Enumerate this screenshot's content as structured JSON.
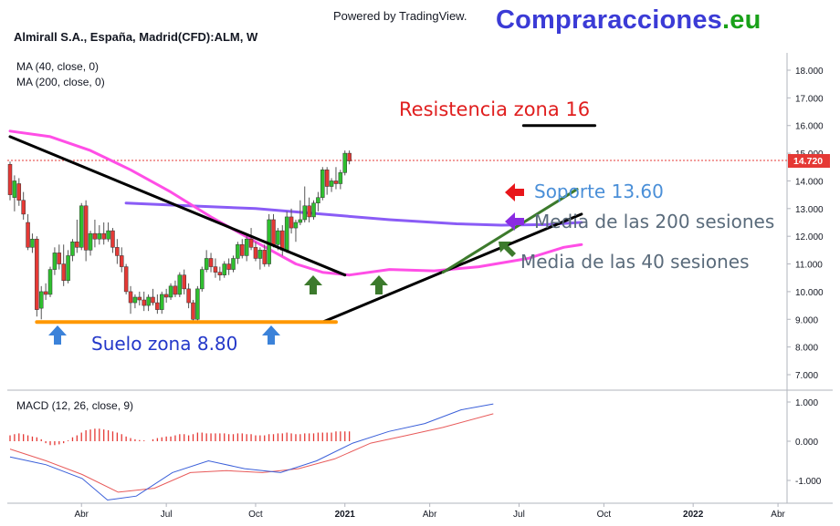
{
  "header": {
    "powered_by": "Powered by TradingView.",
    "brand_main": "Compraracciones",
    "brand_tld": ".eu",
    "symbol": "Almirall S.A., España, Madrid(CFD):ALM, W",
    "indicator_1": "MA (40, close, 0)",
    "indicator_2": "MA (200, close, 0)",
    "macd_label": "MACD (12, 26, close, 9)"
  },
  "colors": {
    "up": "#26a69a",
    "candle_up": "#2fbf2f",
    "candle_down": "#e53935",
    "ma40": "#ff4ee6",
    "ma200": "#8a5cf6",
    "trend_black": "#000000",
    "trend_green": "#3c7a2c",
    "floor": "#ff9800",
    "macd_line": "#3a5fd9",
    "signal_line": "#e85a5a",
    "hist": "#e53935",
    "price_tag": "#e53935"
  },
  "chart_data": {
    "type": "candlestick",
    "main_panel": {
      "y_axis": {
        "range": [
          6.5,
          18.5
        ],
        "ticks": [
          "18.000",
          "17.000",
          "16.000",
          "15.000",
          "14.000",
          "13.000",
          "12.000",
          "11.000",
          "10.000",
          "9.000",
          "8.000",
          "7.000"
        ],
        "tick_values": [
          18,
          17,
          16,
          15,
          14,
          13,
          12,
          11,
          10,
          9,
          8,
          7
        ]
      },
      "last_price": 14.72,
      "last_price_label": "14.720",
      "candles_ohlc": [
        [
          14.6,
          14.7,
          13.3,
          13.5
        ],
        [
          13.4,
          14.2,
          12.9,
          14.0
        ],
        [
          13.9,
          14.1,
          13.1,
          13.3
        ],
        [
          13.3,
          13.6,
          12.6,
          12.8
        ],
        [
          12.5,
          12.8,
          11.5,
          11.6
        ],
        [
          11.6,
          12.1,
          11.4,
          11.9
        ],
        [
          11.9,
          12.0,
          9.1,
          9.35
        ],
        [
          9.4,
          10.2,
          9.0,
          10.0
        ],
        [
          10.0,
          10.3,
          9.7,
          9.9
        ],
        [
          9.9,
          10.9,
          9.8,
          10.8
        ],
        [
          10.8,
          11.6,
          10.6,
          11.4
        ],
        [
          11.4,
          11.7,
          10.8,
          11.0
        ],
        [
          11.0,
          11.7,
          10.2,
          10.4
        ],
        [
          10.4,
          11.5,
          10.3,
          11.3
        ],
        [
          11.3,
          11.9,
          11.1,
          11.8
        ],
        [
          11.8,
          12.6,
          11.4,
          11.6
        ],
        [
          11.6,
          13.2,
          11.5,
          13.1
        ],
        [
          13.1,
          13.3,
          11.1,
          11.5
        ],
        [
          11.5,
          12.2,
          11.3,
          12.1
        ],
        [
          12.1,
          12.6,
          11.6,
          11.9
        ],
        [
          11.9,
          12.4,
          11.7,
          12.1
        ],
        [
          12.1,
          12.5,
          11.7,
          11.9
        ],
        [
          11.9,
          12.5,
          11.8,
          12.2
        ],
        [
          12.2,
          12.3,
          11.4,
          11.6
        ],
        [
          11.6,
          11.9,
          11.0,
          11.3
        ],
        [
          11.3,
          11.6,
          10.7,
          10.9
        ],
        [
          10.9,
          11.0,
          9.9,
          10.0
        ],
        [
          10.0,
          10.2,
          9.2,
          9.6
        ],
        [
          9.6,
          9.9,
          9.4,
          9.8
        ],
        [
          9.8,
          10.0,
          9.5,
          9.7
        ],
        [
          9.7,
          10.0,
          9.3,
          9.5
        ],
        [
          9.5,
          9.9,
          9.3,
          9.8
        ],
        [
          9.8,
          10.1,
          9.5,
          9.6
        ],
        [
          9.6,
          9.9,
          9.2,
          9.35
        ],
        [
          9.35,
          10.0,
          9.2,
          9.9
        ],
        [
          9.9,
          10.1,
          9.6,
          9.8
        ],
        [
          9.8,
          10.3,
          9.7,
          10.2
        ],
        [
          10.2,
          10.4,
          9.8,
          9.9
        ],
        [
          9.9,
          10.7,
          9.8,
          10.6
        ],
        [
          10.6,
          10.8,
          9.9,
          10.1
        ],
        [
          10.1,
          10.3,
          9.4,
          9.6
        ],
        [
          9.6,
          9.7,
          8.9,
          9.0
        ],
        [
          9.0,
          10.2,
          8.9,
          10.1
        ],
        [
          10.1,
          10.9,
          10.0,
          10.8
        ],
        [
          10.8,
          11.5,
          10.7,
          11.2
        ],
        [
          11.2,
          11.4,
          10.7,
          10.9
        ],
        [
          10.9,
          11.2,
          10.5,
          10.7
        ],
        [
          10.7,
          10.9,
          10.4,
          10.6
        ],
        [
          10.6,
          11.1,
          10.5,
          11.0
        ],
        [
          11.0,
          11.2,
          10.6,
          10.8
        ],
        [
          10.8,
          11.3,
          10.7,
          11.2
        ],
        [
          11.2,
          11.8,
          11.0,
          11.7
        ],
        [
          11.7,
          11.9,
          11.2,
          11.3
        ],
        [
          11.3,
          12.0,
          11.1,
          11.9
        ],
        [
          11.9,
          12.3,
          11.5,
          11.6
        ],
        [
          11.6,
          11.8,
          11.1,
          11.2
        ],
        [
          11.2,
          11.6,
          10.8,
          11.5
        ],
        [
          11.5,
          11.7,
          10.9,
          11.0
        ],
        [
          11.0,
          12.8,
          10.9,
          12.6
        ],
        [
          12.6,
          12.8,
          11.6,
          11.7
        ],
        [
          11.7,
          12.3,
          11.5,
          12.2
        ],
        [
          12.2,
          12.4,
          11.3,
          11.5
        ],
        [
          11.5,
          12.9,
          11.4,
          12.7
        ],
        [
          12.7,
          13.0,
          12.1,
          12.3
        ],
        [
          12.3,
          12.6,
          11.8,
          12.5
        ],
        [
          12.5,
          13.3,
          12.4,
          12.6
        ],
        [
          12.6,
          13.8,
          12.5,
          13.1
        ],
        [
          13.1,
          13.4,
          12.5,
          12.7
        ],
        [
          12.7,
          13.3,
          12.6,
          13.2
        ],
        [
          13.2,
          13.6,
          12.9,
          13.4
        ],
        [
          13.4,
          14.5,
          13.3,
          14.4
        ],
        [
          14.4,
          14.5,
          13.5,
          13.8
        ],
        [
          13.8,
          14.1,
          13.6,
          14.0
        ],
        [
          14.0,
          14.5,
          13.7,
          13.9
        ],
        [
          13.9,
          14.4,
          13.7,
          14.3
        ],
        [
          14.3,
          15.1,
          14.2,
          15.0
        ],
        [
          15.0,
          15.1,
          14.6,
          14.72
        ]
      ],
      "ma40": [
        [
          0,
          15.8
        ],
        [
          9,
          15.6
        ],
        [
          18,
          15.1
        ],
        [
          27,
          14.4
        ],
        [
          36,
          13.6
        ],
        [
          45,
          12.7
        ],
        [
          55,
          11.8
        ],
        [
          64,
          11.0
        ],
        [
          70,
          10.7
        ],
        [
          76,
          10.6
        ],
        [
          85,
          10.8
        ],
        [
          95,
          10.75
        ],
        [
          105,
          10.9
        ],
        [
          116,
          11.2
        ],
        [
          124,
          11.6
        ],
        [
          128,
          11.7
        ]
      ],
      "ma200": [
        [
          26,
          13.2
        ],
        [
          40,
          13.1
        ],
        [
          55,
          13.0
        ],
        [
          70,
          12.8
        ],
        [
          85,
          12.6
        ],
        [
          100,
          12.45
        ],
        [
          110,
          12.4
        ],
        [
          120,
          12.42
        ],
        [
          128,
          12.5
        ]
      ],
      "trendlines": [
        {
          "from": [
            0,
            15.6
          ],
          "to": [
            75,
            10.6
          ],
          "color": "trend_black"
        },
        {
          "from": [
            70,
            8.9
          ],
          "to": [
            128,
            12.8
          ],
          "color": "trend_black"
        },
        {
          "from": [
            97,
            10.7
          ],
          "to": [
            127,
            13.7
          ],
          "color": "trend_green"
        },
        {
          "from": [
            115,
            16.0
          ],
          "to": [
            131,
            16.0
          ],
          "color": "trend_black"
        },
        {
          "from": [
            6,
            8.9
          ],
          "to": [
            73,
            8.9
          ],
          "color": "floor"
        }
      ],
      "annotations": [
        {
          "text": "Resistencia zona 16",
          "color": "#e01e1e"
        },
        {
          "text": "Soporte 13.60",
          "color": "#4a8fd8"
        },
        {
          "text": "Media de las 200 sesiones",
          "color": "#5a6b7b"
        },
        {
          "text": "Media de las 40 sesiones",
          "color": "#5a6b7b"
        },
        {
          "text": "Suelo zona 8.80",
          "color": "#2438c9"
        }
      ]
    },
    "macd_panel": {
      "y_axis": {
        "range": [
          -1.3,
          1.1
        ],
        "ticks": [
          "1.000",
          "0.000",
          "-1.000"
        ],
        "tick_values": [
          1,
          0,
          -1
        ]
      },
      "macd": [
        [
          0,
          -0.4
        ],
        [
          10,
          -0.6
        ],
        [
          20,
          -0.95
        ],
        [
          27,
          -1.5
        ],
        [
          35,
          -1.4
        ],
        [
          45,
          -0.8
        ],
        [
          55,
          -0.5
        ],
        [
          65,
          -0.7
        ],
        [
          75,
          -0.8
        ],
        [
          85,
          -0.5
        ],
        [
          95,
          -0.05
        ],
        [
          105,
          0.25
        ],
        [
          115,
          0.45
        ],
        [
          125,
          0.8
        ],
        [
          134,
          0.95
        ]
      ],
      "signal": [
        [
          0,
          -0.2
        ],
        [
          10,
          -0.5
        ],
        [
          20,
          -0.85
        ],
        [
          30,
          -1.3
        ],
        [
          40,
          -1.2
        ],
        [
          50,
          -0.8
        ],
        [
          60,
          -0.75
        ],
        [
          70,
          -0.8
        ],
        [
          80,
          -0.7
        ],
        [
          90,
          -0.45
        ],
        [
          100,
          -0.05
        ],
        [
          110,
          0.15
        ],
        [
          120,
          0.35
        ],
        [
          134,
          0.7
        ]
      ],
      "histogram": [
        0.15,
        0.18,
        0.2,
        0.18,
        0.15,
        0.12,
        0.1,
        0.05,
        -0.05,
        -0.1,
        -0.1,
        -0.08,
        -0.05,
        0.02,
        0.1,
        0.15,
        0.22,
        0.28,
        0.3,
        0.32,
        0.32,
        0.3,
        0.28,
        0.25,
        0.22,
        0.18,
        0.12,
        0.08,
        0.05,
        0.03,
        0.02,
        0.0,
        0.05,
        0.08,
        0.1,
        0.12,
        0.12,
        0.15,
        0.18,
        0.18,
        0.15,
        0.18,
        0.22,
        0.22,
        0.2,
        0.2,
        0.2,
        0.2,
        0.2,
        0.18,
        0.18,
        0.2,
        0.2,
        0.18,
        0.18,
        0.15,
        0.15,
        0.15,
        0.18,
        0.18,
        0.2,
        0.2,
        0.22,
        0.2,
        0.18,
        0.18,
        0.2,
        0.2,
        0.2,
        0.22,
        0.22,
        0.22,
        0.22,
        0.25,
        0.25,
        0.25,
        0.25
      ]
    },
    "x_axis": {
      "ticks": [
        {
          "label": "Abr",
          "bar": 16,
          "bold": false
        },
        {
          "label": "Jul",
          "bar": 35,
          "bold": false
        },
        {
          "label": "Oct",
          "bar": 55,
          "bold": false
        },
        {
          "label": "2021",
          "bar": 75,
          "bold": true
        },
        {
          "label": "Abr",
          "bar": 94,
          "bold": false
        },
        {
          "label": "Jul",
          "bar": 114,
          "bold": false
        },
        {
          "label": "Oct",
          "bar": 133,
          "bold": false
        },
        {
          "label": "2022",
          "bar": 153,
          "bold": true
        },
        {
          "label": "Abr",
          "bar": 172,
          "bold": false
        }
      ]
    }
  }
}
